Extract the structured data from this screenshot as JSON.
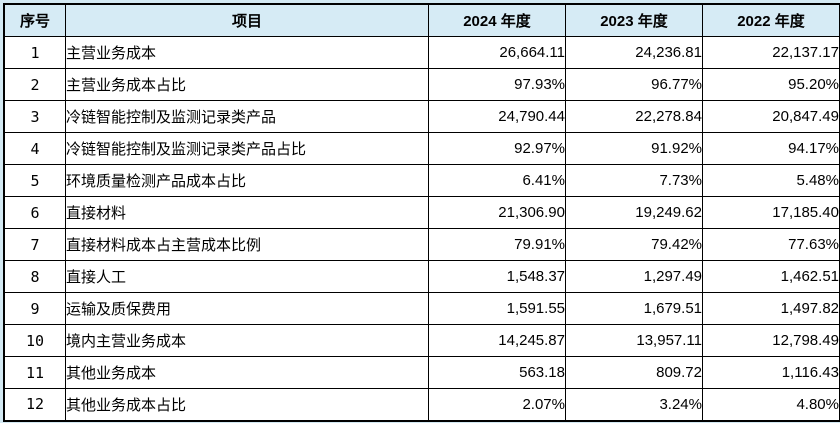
{
  "colors": {
    "page_bg": "#d3e9f3",
    "header_bg": "#d6ebf5",
    "border": "#000000",
    "text": "#000000"
  },
  "table": {
    "columns": {
      "no": "序号",
      "item": "项目",
      "y2024": "2024 年度",
      "y2023": "2023 年度",
      "y2022": "2022 年度"
    },
    "rows": [
      {
        "no": "1",
        "item": "主营业务成本",
        "y2024": "26,664.11",
        "y2023": "24,236.81",
        "y2022": "22,137.17"
      },
      {
        "no": "2",
        "item": "主营业务成本占比",
        "y2024": "97.93%",
        "y2023": "96.77%",
        "y2022": "95.20%"
      },
      {
        "no": "3",
        "item": "冷链智能控制及监测记录类产品",
        "y2024": "24,790.44",
        "y2023": "22,278.84",
        "y2022": "20,847.49"
      },
      {
        "no": "4",
        "item": "冷链智能控制及监测记录类产品占比",
        "y2024": "92.97%",
        "y2023": "91.92%",
        "y2022": "94.17%"
      },
      {
        "no": "5",
        "item": "环境质量检测产品成本占比",
        "y2024": "6.41%",
        "y2023": "7.73%",
        "y2022": "5.48%"
      },
      {
        "no": "6",
        "item": "直接材料",
        "y2024": "21,306.90",
        "y2023": "19,249.62",
        "y2022": "17,185.40"
      },
      {
        "no": "7",
        "item": "直接材料成本占主营成本比例",
        "y2024": "79.91%",
        "y2023": "79.42%",
        "y2022": "77.63%"
      },
      {
        "no": "8",
        "item": "直接人工",
        "y2024": "1,548.37",
        "y2023": "1,297.49",
        "y2022": "1,462.51"
      },
      {
        "no": "9",
        "item": "运输及质保费用",
        "y2024": "1,591.55",
        "y2023": "1,679.51",
        "y2022": "1,497.82"
      },
      {
        "no": "10",
        "item": "境内主营业务成本",
        "y2024": "14,245.87",
        "y2023": "13,957.11",
        "y2022": "12,798.49"
      },
      {
        "no": "11",
        "item": "其他业务成本",
        "y2024": "563.18",
        "y2023": "809.72",
        "y2022": "1,116.43"
      },
      {
        "no": "12",
        "item": "其他业务成本占比",
        "y2024": "2.07%",
        "y2023": "3.24%",
        "y2022": "4.80%"
      }
    ]
  }
}
